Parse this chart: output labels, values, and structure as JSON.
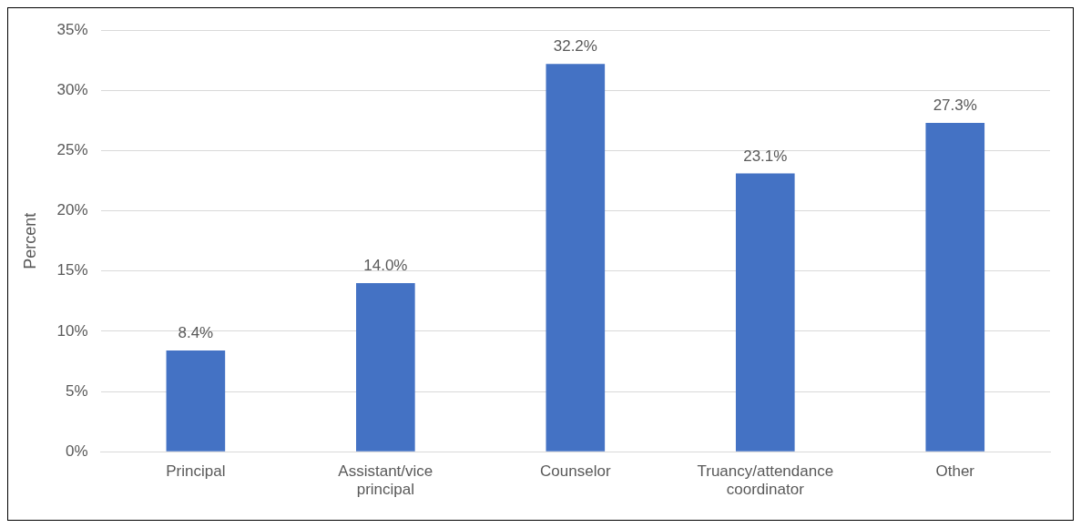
{
  "chart_data": {
    "type": "bar",
    "ylabel": "Percent",
    "categories": [
      "Principal",
      "Assistant/vice principal",
      "Counselor",
      "Truancy/attendance coordinator",
      "Other"
    ],
    "values": [
      8.4,
      14.0,
      32.2,
      23.1,
      27.3
    ],
    "value_labels": [
      "8.4%",
      "14.0%",
      "32.2%",
      "23.1%",
      "27.3%"
    ],
    "color": "#4472c4",
    "ylim": [
      0,
      35
    ],
    "yticks": [
      {
        "value": 0,
        "label": "0%"
      },
      {
        "value": 5,
        "label": "5%"
      },
      {
        "value": 10,
        "label": "10%"
      },
      {
        "value": 15,
        "label": "15%"
      },
      {
        "value": 20,
        "label": "20%"
      },
      {
        "value": 25,
        "label": "25%"
      },
      {
        "value": 30,
        "label": "30%"
      },
      {
        "value": 35,
        "label": "35%"
      }
    ],
    "grid": "y",
    "legend": false
  }
}
